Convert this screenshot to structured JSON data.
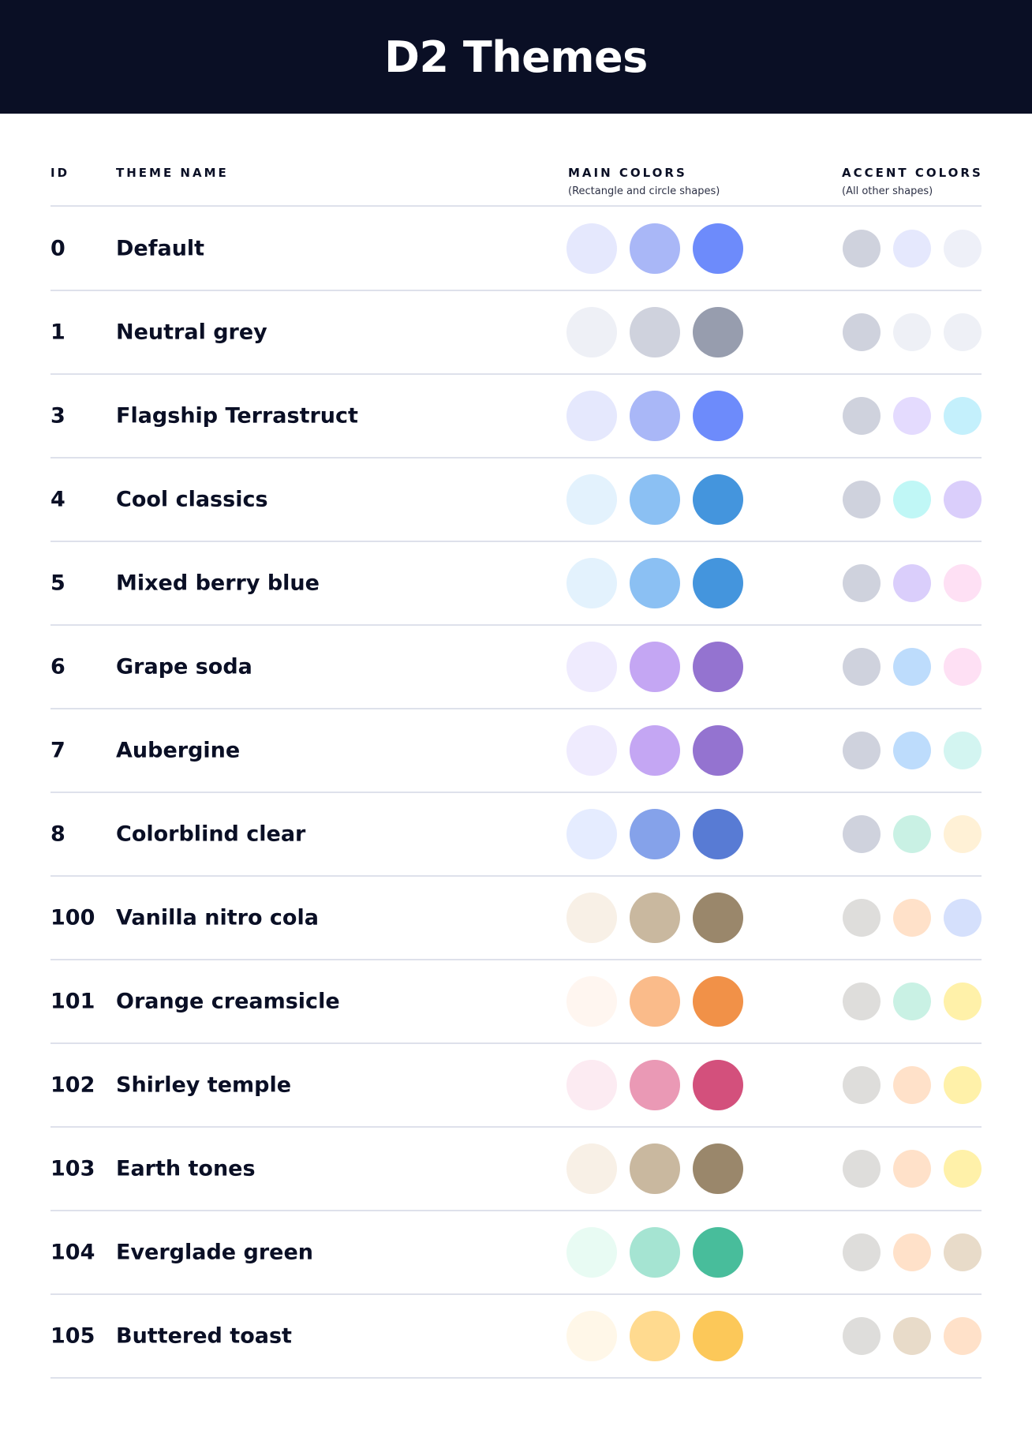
{
  "title": "D2 Themes",
  "columns": {
    "id": "ID",
    "name": "THEME NAME",
    "main": "MAIN COLORS",
    "main_sub": "(Rectangle and circle shapes)",
    "accent": "ACCENT COLORS",
    "accent_sub": "(All other shapes)"
  },
  "themes": [
    {
      "id": "0",
      "name": "Default",
      "main": [
        "#E5E8FD",
        "#A9B7F7",
        "#6D8BFB"
      ],
      "accent": [
        "#CFD2DD",
        "#E5E8FD",
        "#EEF0F8"
      ]
    },
    {
      "id": "1",
      "name": "Neutral grey",
      "main": [
        "#EEF0F6",
        "#CFD2DD",
        "#979DAE"
      ],
      "accent": [
        "#CFD2DD",
        "#EEF0F6",
        "#EEF0F6"
      ]
    },
    {
      "id": "3",
      "name": "Flagship Terrastruct",
      "main": [
        "#E5E8FD",
        "#A9B7F7",
        "#6D8BFB"
      ],
      "accent": [
        "#CFD2DD",
        "#E4DBFE",
        "#C4F0FC"
      ]
    },
    {
      "id": "4",
      "name": "Cool classics",
      "main": [
        "#E3F2FD",
        "#8BC0F3",
        "#4495DD"
      ],
      "accent": [
        "#CFD2DD",
        "#C0F7F6",
        "#DACEFB"
      ]
    },
    {
      "id": "5",
      "name": "Mixed berry blue",
      "main": [
        "#E3F2FD",
        "#8BC0F3",
        "#4495DD"
      ],
      "accent": [
        "#CFD2DD",
        "#DACEFB",
        "#FEE0F4"
      ]
    },
    {
      "id": "6",
      "name": "Grape soda",
      "main": [
        "#EFEBFE",
        "#C4A6F3",
        "#9473D0"
      ],
      "accent": [
        "#CFD2DD",
        "#BDDCFC",
        "#FEE0F4"
      ]
    },
    {
      "id": "7",
      "name": "Aubergine",
      "main": [
        "#EFEBFE",
        "#C4A6F3",
        "#9473D0"
      ],
      "accent": [
        "#CFD2DD",
        "#BDDCFC",
        "#D3F5F1"
      ]
    },
    {
      "id": "8",
      "name": "Colorblind clear",
      "main": [
        "#E5ECFF",
        "#85A2EA",
        "#587BD4"
      ],
      "accent": [
        "#CFD2DD",
        "#C9F1E4",
        "#FFF1D6"
      ]
    },
    {
      "id": "100",
      "name": "Vanilla nitro cola",
      "main": [
        "#F8F0E6",
        "#C9B89F",
        "#9A876B"
      ],
      "accent": [
        "#DEDDDB",
        "#FFE1C9",
        "#D5E0FC"
      ]
    },
    {
      "id": "101",
      "name": "Orange creamsicle",
      "main": [
        "#FFF6F0",
        "#FABB8A",
        "#F19148"
      ],
      "accent": [
        "#DEDDDB",
        "#C9F1E4",
        "#FFF1A9"
      ]
    },
    {
      "id": "102",
      "name": "Shirley temple",
      "main": [
        "#FCEBF2",
        "#EA99B5",
        "#D3507C"
      ],
      "accent": [
        "#DEDDDB",
        "#FFE1C9",
        "#FFF1A9"
      ]
    },
    {
      "id": "103",
      "name": "Earth tones",
      "main": [
        "#F8F0E6",
        "#C9B89F",
        "#9A876B"
      ],
      "accent": [
        "#DEDDDB",
        "#FFE1C9",
        "#FFF1A9"
      ]
    },
    {
      "id": "104",
      "name": "Everglade green",
      "main": [
        "#E8FBF3",
        "#A5E4D2",
        "#48BD9B"
      ],
      "accent": [
        "#DEDDDB",
        "#FFE1C9",
        "#E8DBC9"
      ]
    },
    {
      "id": "105",
      "name": "Buttered toast",
      "main": [
        "#FFF7E8",
        "#FFDA8F",
        "#FCC859"
      ],
      "accent": [
        "#DEDDDB",
        "#E8DBC9",
        "#FFE1C9"
      ]
    }
  ]
}
